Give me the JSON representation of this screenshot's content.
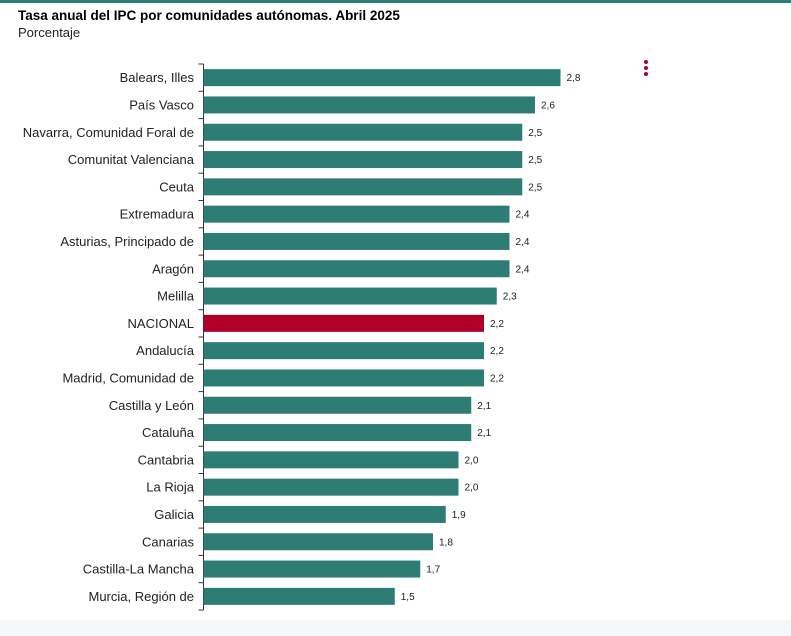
{
  "chart_data": {
    "type": "bar",
    "orientation": "horizontal",
    "title": "Tasa anual del IPC por comunidades autónomas. Abril 2025",
    "subtitle": "Porcentaje",
    "categories": [
      "Balears, Illes",
      "País Vasco",
      "Navarra, Comunidad Foral de",
      "Comunitat Valenciana",
      "Ceuta",
      "Extremadura",
      "Asturias, Principado de",
      "Aragón",
      "Melilla",
      "NACIONAL",
      "Andalucía",
      "Madrid, Comunidad de",
      "Castilla y León",
      "Cataluña",
      "Cantabria",
      "La Rioja",
      "Galicia",
      "Canarias",
      "Castilla-La Mancha",
      "Murcia, Región de"
    ],
    "values": [
      2.8,
      2.6,
      2.5,
      2.5,
      2.5,
      2.4,
      2.4,
      2.4,
      2.3,
      2.2,
      2.2,
      2.2,
      2.1,
      2.1,
      2.0,
      2.0,
      1.9,
      1.8,
      1.7,
      1.5
    ],
    "value_labels": [
      "2,8",
      "2,6",
      "2,5",
      "2,5",
      "2,5",
      "2,4",
      "2,4",
      "2,4",
      "2,3",
      "2,2",
      "2,2",
      "2,2",
      "2,1",
      "2,1",
      "2,0",
      "2,0",
      "1,9",
      "1,8",
      "1,7",
      "1,5"
    ],
    "highlight_category": "NACIONAL",
    "xlim": [
      0,
      2.8
    ],
    "grid": false,
    "colors": {
      "bar": "#2e7d74",
      "highlight": "#b0002a"
    }
  },
  "menu": {
    "icon": "vertical-dots-icon",
    "color": "#b0002a"
  }
}
